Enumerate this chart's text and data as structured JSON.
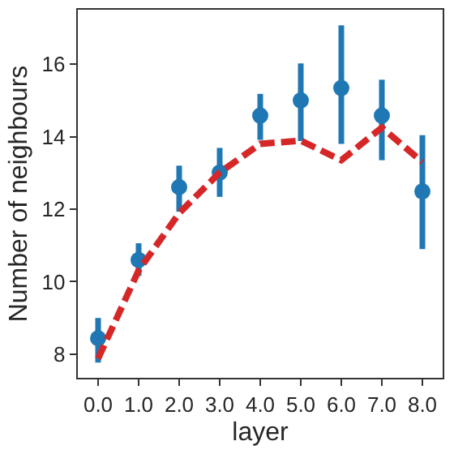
{
  "chart_data": {
    "type": "scatter",
    "xlabel": "layer",
    "ylabel": "Number of neighbours",
    "categories": [
      "0.0",
      "1.0",
      "2.0",
      "3.0",
      "4.0",
      "5.0",
      "6.0",
      "7.0",
      "8.0"
    ],
    "ylim": [
      7.35,
      17.5
    ],
    "yticks": [
      8,
      10,
      12,
      14,
      16
    ],
    "grid": false,
    "series": [
      {
        "marker": "circle",
        "color": "#1f77b4",
        "values": [
          8.44,
          10.6,
          12.61,
          13.01,
          14.58,
          15.0,
          15.34,
          14.58,
          12.49
        ],
        "errors": [
          [
            7.77,
            9.0
          ],
          [
            10.16,
            11.06
          ],
          [
            11.93,
            13.2
          ],
          [
            12.34,
            13.69
          ],
          [
            13.91,
            15.18
          ],
          [
            13.88,
            16.02
          ],
          [
            13.8,
            17.07
          ],
          [
            13.35,
            15.57
          ],
          [
            10.9,
            14.04
          ]
        ]
      },
      {
        "type": "line",
        "color": "#d62728",
        "line_style": "dashed",
        "values": [
          7.88,
          10.31,
          11.89,
          13.01,
          13.8,
          13.89,
          13.35,
          14.25,
          13.3
        ]
      }
    ]
  }
}
